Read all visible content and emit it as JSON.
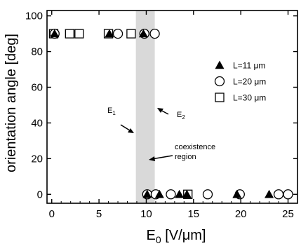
{
  "chart_data": {
    "type": "scatter",
    "title": "",
    "xlabel": "E0 [V/μm]",
    "ylabel": "orientation angle [deg]",
    "xlim": [
      -0.5,
      26
    ],
    "ylim": [
      -5,
      103
    ],
    "xticks": [
      0,
      5,
      10,
      15,
      20,
      25
    ],
    "yticks": [
      0,
      20,
      40,
      60,
      80,
      100
    ],
    "grid": false,
    "legend_position": "right",
    "series": [
      {
        "name": "L=11 μm",
        "marker": "filled-triangle",
        "points": [
          [
            0.3,
            90
          ],
          [
            6.1,
            90
          ],
          [
            9.7,
            90
          ],
          [
            10.1,
            0
          ],
          [
            11.4,
            0
          ],
          [
            13.5,
            0
          ],
          [
            14.3,
            0
          ],
          [
            19.6,
            0
          ],
          [
            23.0,
            0
          ]
        ]
      },
      {
        "name": "L=20 μm",
        "marker": "open-circle",
        "points": [
          [
            0.3,
            90
          ],
          [
            7.0,
            90
          ],
          [
            9.8,
            90
          ],
          [
            10.9,
            90
          ],
          [
            10.1,
            0
          ],
          [
            11.0,
            0
          ],
          [
            12.6,
            0
          ],
          [
            16.5,
            0
          ],
          [
            19.9,
            0
          ],
          [
            24.0,
            0
          ],
          [
            25.0,
            0
          ]
        ]
      },
      {
        "name": "L=30 μm",
        "marker": "open-square",
        "points": [
          [
            0.2,
            90
          ],
          [
            1.9,
            90
          ],
          [
            2.9,
            90
          ],
          [
            6.0,
            90
          ],
          [
            8.4,
            90
          ],
          [
            14.4,
            0
          ]
        ]
      }
    ],
    "shaded_band": {
      "x": [
        8.9,
        10.9
      ],
      "label": "coexistence region",
      "color": "#d9d9d9"
    },
    "annotations": {
      "e1": "E1",
      "e2": "E2",
      "coexistence": [
        "coexistence",
        "region"
      ]
    }
  }
}
